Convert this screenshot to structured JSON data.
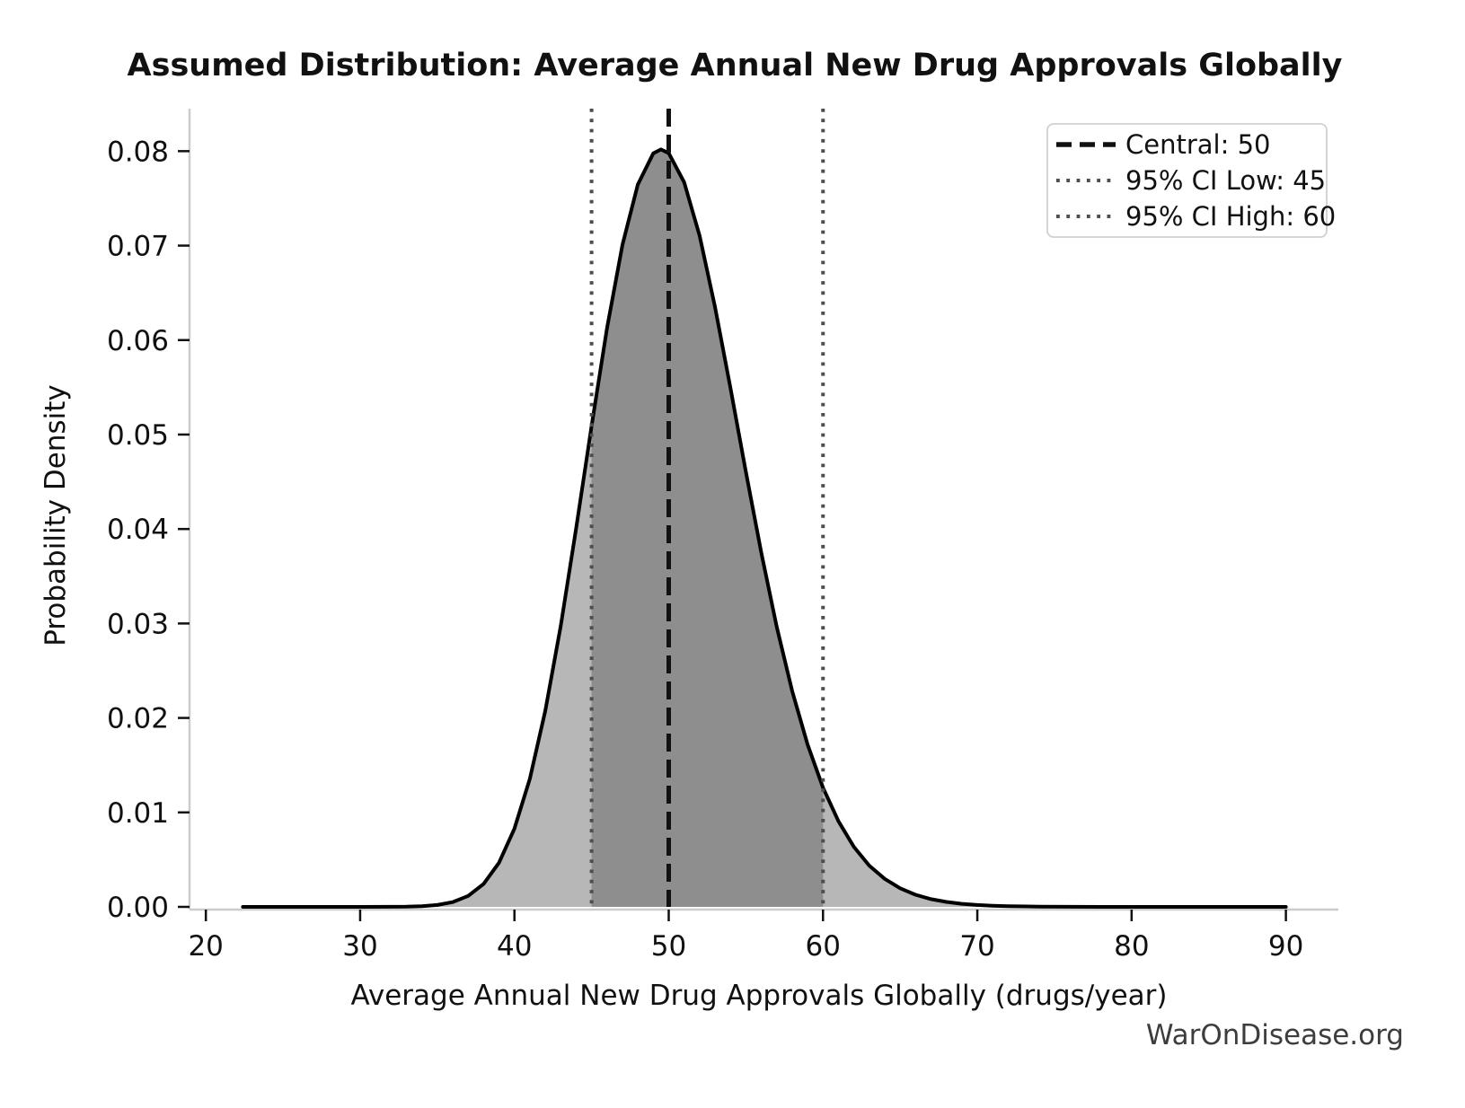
{
  "chart_data": {
    "type": "area",
    "title": "Assumed Distribution: Average Annual New Drug Approvals Globally",
    "xlabel": "Average Annual New Drug Approvals Globally (drugs/year)",
    "ylabel": "Probability Density",
    "watermark": "WarOnDisease.org",
    "legend_position": "upper right",
    "grid": false,
    "xlim": [
      19.0,
      93.4
    ],
    "ylim": [
      0,
      0.0845
    ],
    "x_ticks": [
      20,
      30,
      40,
      50,
      60,
      70,
      80,
      90
    ],
    "y_ticks": [
      {
        "v": 0.0,
        "label": "0.00"
      },
      {
        "v": 0.01,
        "label": "0.01"
      },
      {
        "v": 0.02,
        "label": "0.02"
      },
      {
        "v": 0.03,
        "label": "0.03"
      },
      {
        "v": 0.04,
        "label": "0.04"
      },
      {
        "v": 0.05,
        "label": "0.05"
      },
      {
        "v": 0.06,
        "label": "0.06"
      },
      {
        "v": 0.07,
        "label": "0.07"
      },
      {
        "v": 0.08,
        "label": "0.08"
      }
    ],
    "distribution": {
      "family": "lognormal",
      "central": 50,
      "ci95_low": 45,
      "ci95_high": 60,
      "peak_x": 49.5,
      "peak_density": 0.0802
    },
    "markers": [
      {
        "name": "central",
        "value": 50,
        "style": "dashed",
        "color": "#111111",
        "label": "Central: 50"
      },
      {
        "name": "ci_low",
        "value": 45,
        "style": "dotted",
        "color": "#4d4d4d",
        "label": "95% CI Low: 45"
      },
      {
        "name": "ci_high",
        "value": 60,
        "style": "dotted",
        "color": "#4d4d4d",
        "label": "95% CI High: 60"
      }
    ],
    "shaded_interval": {
      "from": 45,
      "to": 60
    },
    "curve": {
      "x": [
        22.4,
        26,
        30,
        32,
        33,
        34,
        35,
        36,
        37,
        38,
        39,
        40,
        41,
        42,
        43,
        44,
        45,
        46,
        47,
        48,
        49,
        49.5,
        50,
        51,
        52,
        53,
        54,
        55,
        56,
        57,
        58,
        59,
        60,
        61,
        62,
        63,
        64,
        65,
        66,
        67,
        68,
        69,
        70,
        71,
        72,
        74,
        76,
        78,
        80,
        83,
        86,
        90
      ],
      "y": [
        0,
        0,
        0,
        6e-06,
        2.2e-05,
        6.9e-05,
        0.000197,
        0.000502,
        0.001158,
        0.002433,
        0.00467,
        0.008275,
        0.013564,
        0.020773,
        0.029751,
        0.04005,
        0.050891,
        0.061261,
        0.070092,
        0.076469,
        0.079771,
        0.080188,
        0.079789,
        0.076705,
        0.07104,
        0.063519,
        0.05494,
        0.046056,
        0.037482,
        0.029665,
        0.022863,
        0.017186,
        0.012616,
        0.009058,
        0.006363,
        0.00436,
        0.002961,
        0.001965,
        0.001281,
        0.000822,
        0.000519,
        0.000323,
        0.000198,
        0.00012,
        7.2e-05,
        2.5e-05,
        8e-06,
        3e-06,
        1e-06,
        0,
        0,
        0
      ]
    },
    "colors": {
      "fill_light": "#b7b7b7",
      "fill_dark": "#8e8e8e",
      "curve": "#000000",
      "spine": "#cccccc",
      "tick": "#111111",
      "watermark": "#3d3d3d",
      "legend_border": "#d0d0d0"
    }
  }
}
